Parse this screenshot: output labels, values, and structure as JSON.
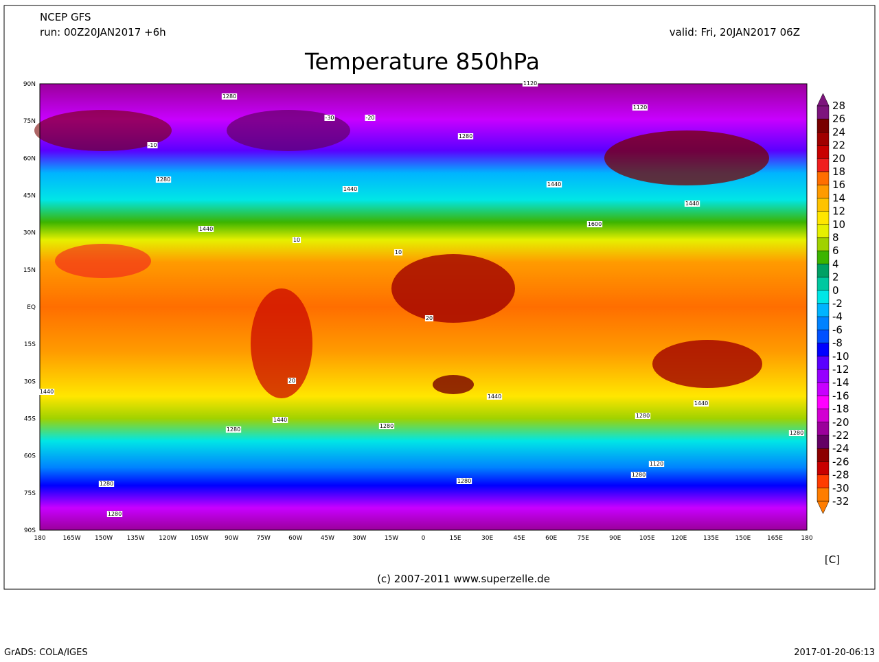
{
  "header": {
    "model": "NCEP GFS",
    "run": "run: 00Z20JAN2017 +6h",
    "valid": "valid: Fri, 20JAN2017 06Z"
  },
  "title": "Temperature 850hPa",
  "map": {
    "lat_labels": [
      "90N",
      "75N",
      "60N",
      "45N",
      "30N",
      "15N",
      "EQ",
      "15S",
      "30S",
      "45S",
      "60S",
      "75S",
      "90S"
    ],
    "lon_labels": [
      "180",
      "165W",
      "150W",
      "135W",
      "120W",
      "105W",
      "90W",
      "75W",
      "60W",
      "45W",
      "30W",
      "15W",
      "0",
      "15E",
      "30E",
      "45E",
      "60E",
      "75E",
      "90E",
      "105E",
      "120E",
      "135E",
      "150E",
      "165E",
      "180"
    ],
    "contour_labels": [
      "1280",
      "1120",
      "1280",
      "1440",
      "1440",
      "1280",
      "1440",
      "1600",
      "1440",
      "1440",
      "1440",
      "1440",
      "1440",
      "1280",
      "1280",
      "1280",
      "1120",
      "1280",
      "1280",
      "1280",
      "1280",
      "1280",
      "1120",
      "-10",
      "10",
      "20",
      "-20",
      "-30",
      "10",
      "20"
    ]
  },
  "legend": {
    "labels": [
      28,
      26,
      24,
      22,
      20,
      18,
      16,
      14,
      12,
      10,
      8,
      6,
      4,
      2,
      0,
      -2,
      -4,
      -6,
      -8,
      -10,
      -12,
      -14,
      -16,
      -18,
      -20,
      -22,
      -24,
      -26,
      -28,
      -30,
      -32
    ],
    "colors": [
      "#7d147d",
      "#780000",
      "#a00000",
      "#c80000",
      "#f01e1e",
      "#ff6e00",
      "#ff9b00",
      "#ffc300",
      "#ffe600",
      "#e6f000",
      "#a0d200",
      "#3cb400",
      "#00a064",
      "#00c8a0",
      "#00e6e6",
      "#00b4ff",
      "#0082ff",
      "#0050ff",
      "#0000ff",
      "#5a00ff",
      "#9600ff",
      "#c800ff",
      "#ff00ff",
      "#d200d2",
      "#9b009b",
      "#640064",
      "#8c0000",
      "#c80000",
      "#ff3c00",
      "#ff7d00"
    ],
    "unit": "[C]"
  },
  "footer": {
    "credit": "(c) 2007-2011 www.superzelle.de"
  },
  "page_footer": {
    "left": "GrADS: COLA/IGES",
    "right": "2017-01-20-06:13"
  }
}
